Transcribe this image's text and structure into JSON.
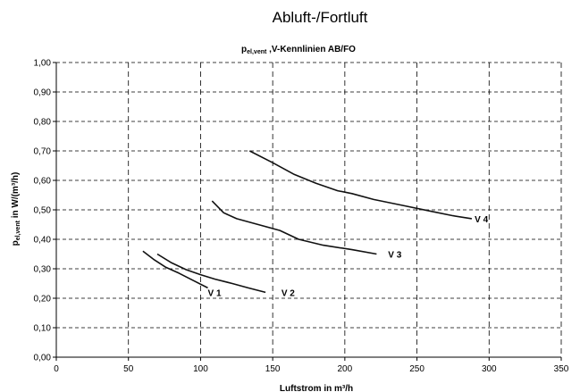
{
  "page": {
    "title": "Abluft-/Fortluft"
  },
  "chart_data": {
    "type": "line",
    "title_main": "p",
    "title_sub": "el,vent",
    "title_rest": " ,V-Kennlinien AB/FO",
    "xlabel": "Luftstrom in m³/h",
    "ylabel_main": "p",
    "ylabel_sub": "el,vent",
    "ylabel_rest": " in W/(m³/h)",
    "xlim": [
      0,
      350
    ],
    "ylim": [
      0,
      1.0
    ],
    "x_ticks": [
      0,
      50,
      100,
      150,
      200,
      250,
      300,
      350
    ],
    "y_ticks": [
      0.0,
      0.1,
      0.2,
      0.3,
      0.4,
      0.5,
      0.6,
      0.7,
      0.8,
      0.9,
      1.0
    ],
    "x_tick_labels": [
      "0",
      "50",
      "100",
      "150",
      "200",
      "250",
      "300",
      "350"
    ],
    "y_tick_labels": [
      "0,00",
      "0,10",
      "0,20",
      "0,30",
      "0,40",
      "0,50",
      "0,60",
      "0,70",
      "0,80",
      "0,90",
      "1,00"
    ],
    "grid": true,
    "series": [
      {
        "name": "V 1",
        "x": [
          60,
          68,
          76,
          85,
          95,
          105
        ],
        "y": [
          0.36,
          0.33,
          0.305,
          0.285,
          0.26,
          0.235
        ],
        "label_at": [
          105,
          0.22
        ]
      },
      {
        "name": "V 2",
        "x": [
          70,
          80,
          90,
          100,
          110,
          122,
          133,
          145
        ],
        "y": [
          0.35,
          0.32,
          0.297,
          0.28,
          0.265,
          0.25,
          0.235,
          0.22
        ],
        "label_at": [
          156,
          0.22
        ]
      },
      {
        "name": "V 3",
        "x": [
          108,
          116,
          125,
          140,
          155,
          168,
          185,
          205,
          222
        ],
        "y": [
          0.53,
          0.49,
          0.47,
          0.45,
          0.43,
          0.4,
          0.38,
          0.365,
          0.35
        ],
        "label_at": [
          230,
          0.35
        ]
      },
      {
        "name": "V 4",
        "x": [
          134,
          150,
          165,
          180,
          195,
          205,
          220,
          240,
          260,
          275,
          288
        ],
        "y": [
          0.7,
          0.66,
          0.62,
          0.59,
          0.565,
          0.555,
          0.535,
          0.515,
          0.495,
          0.48,
          0.47
        ],
        "label_at": [
          290,
          0.47
        ]
      }
    ]
  }
}
